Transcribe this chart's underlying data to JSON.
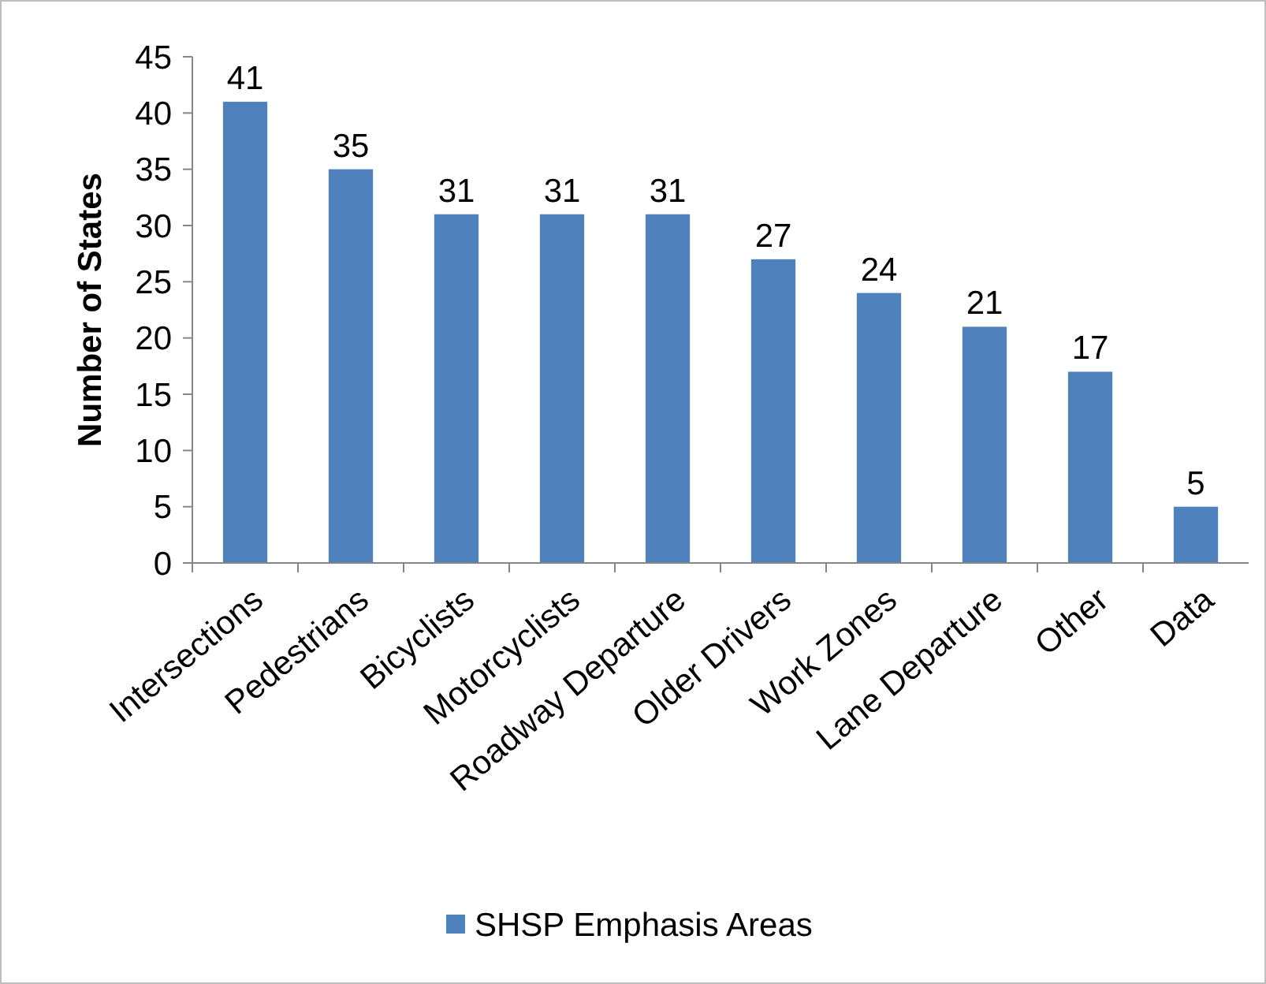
{
  "chart_data": {
    "type": "bar",
    "ylabel": "Number of States",
    "categories": [
      "Intersections",
      "Pedestrians",
      "Bicyclists",
      "Motorcyclists",
      "Roadway Departure",
      "Older Drivers",
      "Work Zones",
      "Lane Departure",
      "Other",
      "Data"
    ],
    "series": [
      {
        "name": "SHSP Emphasis Areas",
        "color": "#4f81bd",
        "values": [
          41,
          35,
          31,
          31,
          31,
          27,
          24,
          21,
          17,
          5
        ]
      }
    ],
    "ylim": [
      0,
      45
    ],
    "yticks": [
      0,
      5,
      10,
      15,
      20,
      25,
      30,
      35,
      40,
      45
    ],
    "data_labels": true,
    "legend": "bottom",
    "grid": false
  }
}
